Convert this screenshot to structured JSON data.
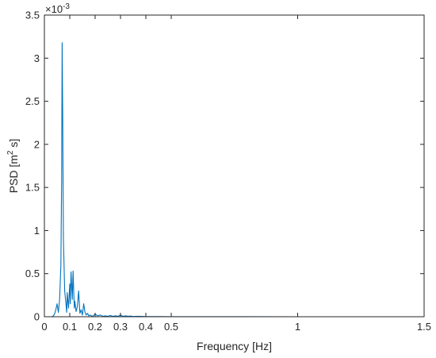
{
  "chart_data": {
    "type": "line",
    "title": "",
    "xlabel": "Frequency [Hz]",
    "ylabel_main": "PSD [m",
    "ylabel_sup": "2",
    "ylabel_end": " s]",
    "y_multiplier_base": "×10",
    "y_multiplier_exp": "-3",
    "xlim": [
      0,
      1.5
    ],
    "ylim": [
      0,
      3.5
    ],
    "x_ticks": [
      0,
      0.1,
      0.2,
      0.3,
      0.4,
      0.5,
      1,
      1.5
    ],
    "x_tick_labels": [
      "0",
      "0.1",
      "0.2",
      "0.3",
      "0.4",
      "0.5",
      "1",
      "1.5"
    ],
    "y_ticks": [
      0,
      0.5,
      1,
      1.5,
      2,
      2.5,
      3,
      3.5
    ],
    "y_tick_labels": [
      "0",
      "0.5",
      "1",
      "1.5",
      "2",
      "2.5",
      "3",
      "3.5"
    ],
    "x_scale": "nonlinear: 0–0.5 expanded, 0.5–1.5 compressed (as printed ticks)",
    "grid": false,
    "series": [
      {
        "color": "#0072BD",
        "x": [
          0,
          0.01,
          0.02,
          0.03,
          0.035,
          0.04,
          0.045,
          0.05,
          0.055,
          0.06,
          0.065,
          0.068,
          0.07,
          0.072,
          0.075,
          0.08,
          0.085,
          0.088,
          0.09,
          0.095,
          0.1,
          0.102,
          0.105,
          0.11,
          0.113,
          0.115,
          0.118,
          0.12,
          0.125,
          0.13,
          0.135,
          0.14,
          0.145,
          0.15,
          0.155,
          0.16,
          0.165,
          0.17,
          0.175,
          0.18,
          0.19,
          0.2,
          0.21,
          0.22,
          0.23,
          0.24,
          0.25,
          0.26,
          0.27,
          0.28,
          0.29,
          0.3,
          0.31,
          0.32,
          0.33,
          0.34,
          0.35,
          0.37,
          0.4,
          0.45,
          0.5,
          0.6,
          0.8,
          1.0,
          1.2,
          1.5
        ],
        "y": [
          0,
          0,
          0,
          0,
          0.01,
          0.03,
          0.08,
          0.15,
          0.05,
          0.2,
          0.6,
          1.6,
          3.18,
          2.4,
          0.9,
          0.3,
          0.15,
          0.05,
          0.28,
          0.1,
          0.38,
          0.15,
          0.52,
          0.2,
          0.53,
          0.35,
          0.1,
          0.18,
          0.06,
          0.12,
          0.3,
          0.04,
          0.08,
          0.02,
          0.15,
          0.05,
          0.02,
          0.04,
          0.01,
          0.02,
          0.005,
          0.03,
          0.01,
          0.02,
          0.005,
          0.01,
          0.005,
          0.015,
          0.005,
          0.01,
          0.005,
          0.02,
          0.005,
          0.01,
          0.005,
          0.008,
          0.003,
          0.005,
          0.002,
          0.002,
          0.001,
          0.0005,
          0.0002,
          0.0001,
          0.0001,
          0
        ]
      }
    ]
  }
}
